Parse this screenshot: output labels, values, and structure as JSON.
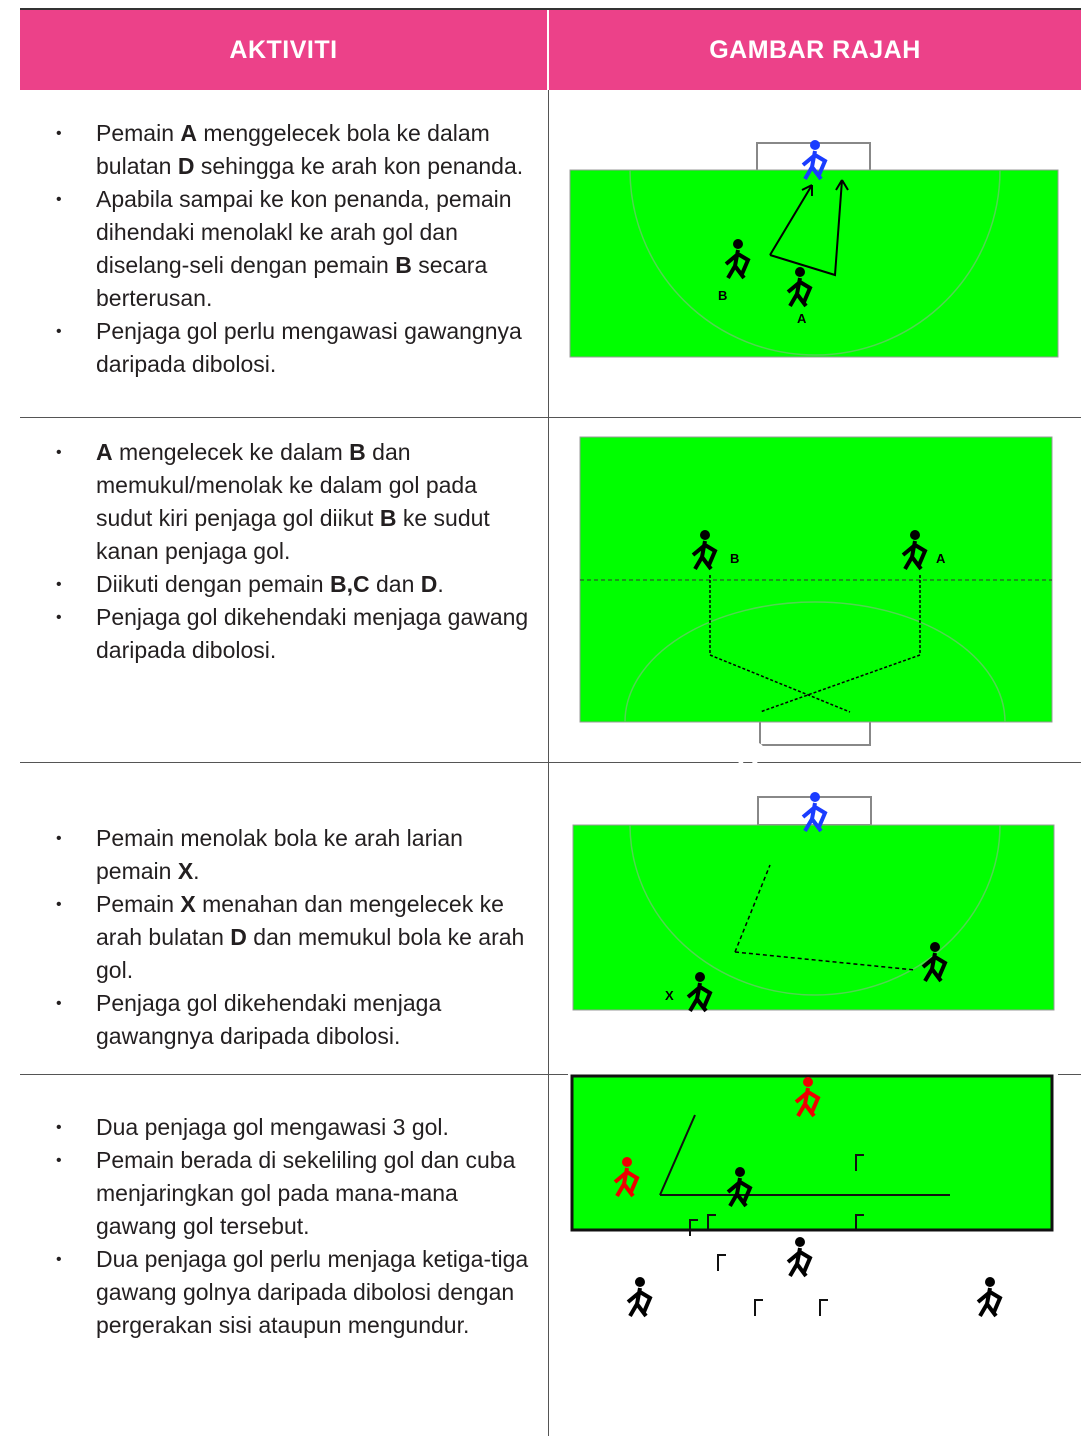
{
  "header": {
    "activity": "AKTIVITI",
    "diagram": "GAMBAR RAJAH"
  },
  "rows": [
    {
      "bullets": [
        [
          "Pemain ",
          {
            "text": "A",
            "bold": true
          },
          " menggelecek bola ke dalam bulatan ",
          {
            "text": "D",
            "bold": true
          },
          " sehingga ke arah kon penanda."
        ],
        [
          "Apabila sampai ke kon penanda, pemain dihendaki menolakl ke arah gol dan diselang-seli dengan pemain ",
          {
            "text": "B",
            "bold": true
          },
          " secara berterusan."
        ],
        [
          "Penjaga gol perlu mengawasi gawangnya daripada dibolosi."
        ]
      ],
      "diagram_labels": [
        "B",
        "A"
      ]
    },
    {
      "bullets": [
        [
          {
            "text": "A",
            "bold": true
          },
          " mengelecek ke dalam ",
          {
            "text": "B",
            "bold": true
          },
          " dan memukul/menolak ke dalam gol pada sudut kiri penjaga gol diikut ",
          {
            "text": "B",
            "bold": true
          },
          " ke sudut kanan penjaga gol."
        ],
        [
          "Diikuti dengan pemain ",
          {
            "text": "B,C",
            "bold": true
          },
          " dan ",
          {
            "text": "D",
            "bold": true
          },
          "."
        ],
        [
          "Penjaga gol dikehendaki menjaga gawang daripada dibolosi."
        ]
      ],
      "diagram_labels": [
        "B",
        "A"
      ]
    },
    {
      "bullets": [
        [
          "Pemain menolak bola ke arah larian pemain ",
          {
            "text": "X",
            "bold": true
          },
          "."
        ],
        [
          "Pemain ",
          {
            "text": "X",
            "bold": true
          },
          " menahan dan mengelecek ke arah bulatan ",
          {
            "text": "D",
            "bold": true
          },
          " dan memukul bola ke arah gol."
        ],
        [
          "Penjaga gol dikehendaki menjaga gawangnya daripada dibolosi."
        ]
      ],
      "diagram_labels": [
        "X"
      ]
    },
    {
      "bullets": [
        [
          "Dua penjaga gol mengawasi 3 gol."
        ],
        [
          "Pemain berada di sekeliling gol dan cuba menjaringkan gol pada mana-mana gawang gol tersebut."
        ],
        [
          "Dua penjaga gol perlu menjaga ketiga-tiga gawang golnya daripada dibolosi dengan pergerakan sisi ataupun mengundur."
        ]
      ]
    }
  ]
}
